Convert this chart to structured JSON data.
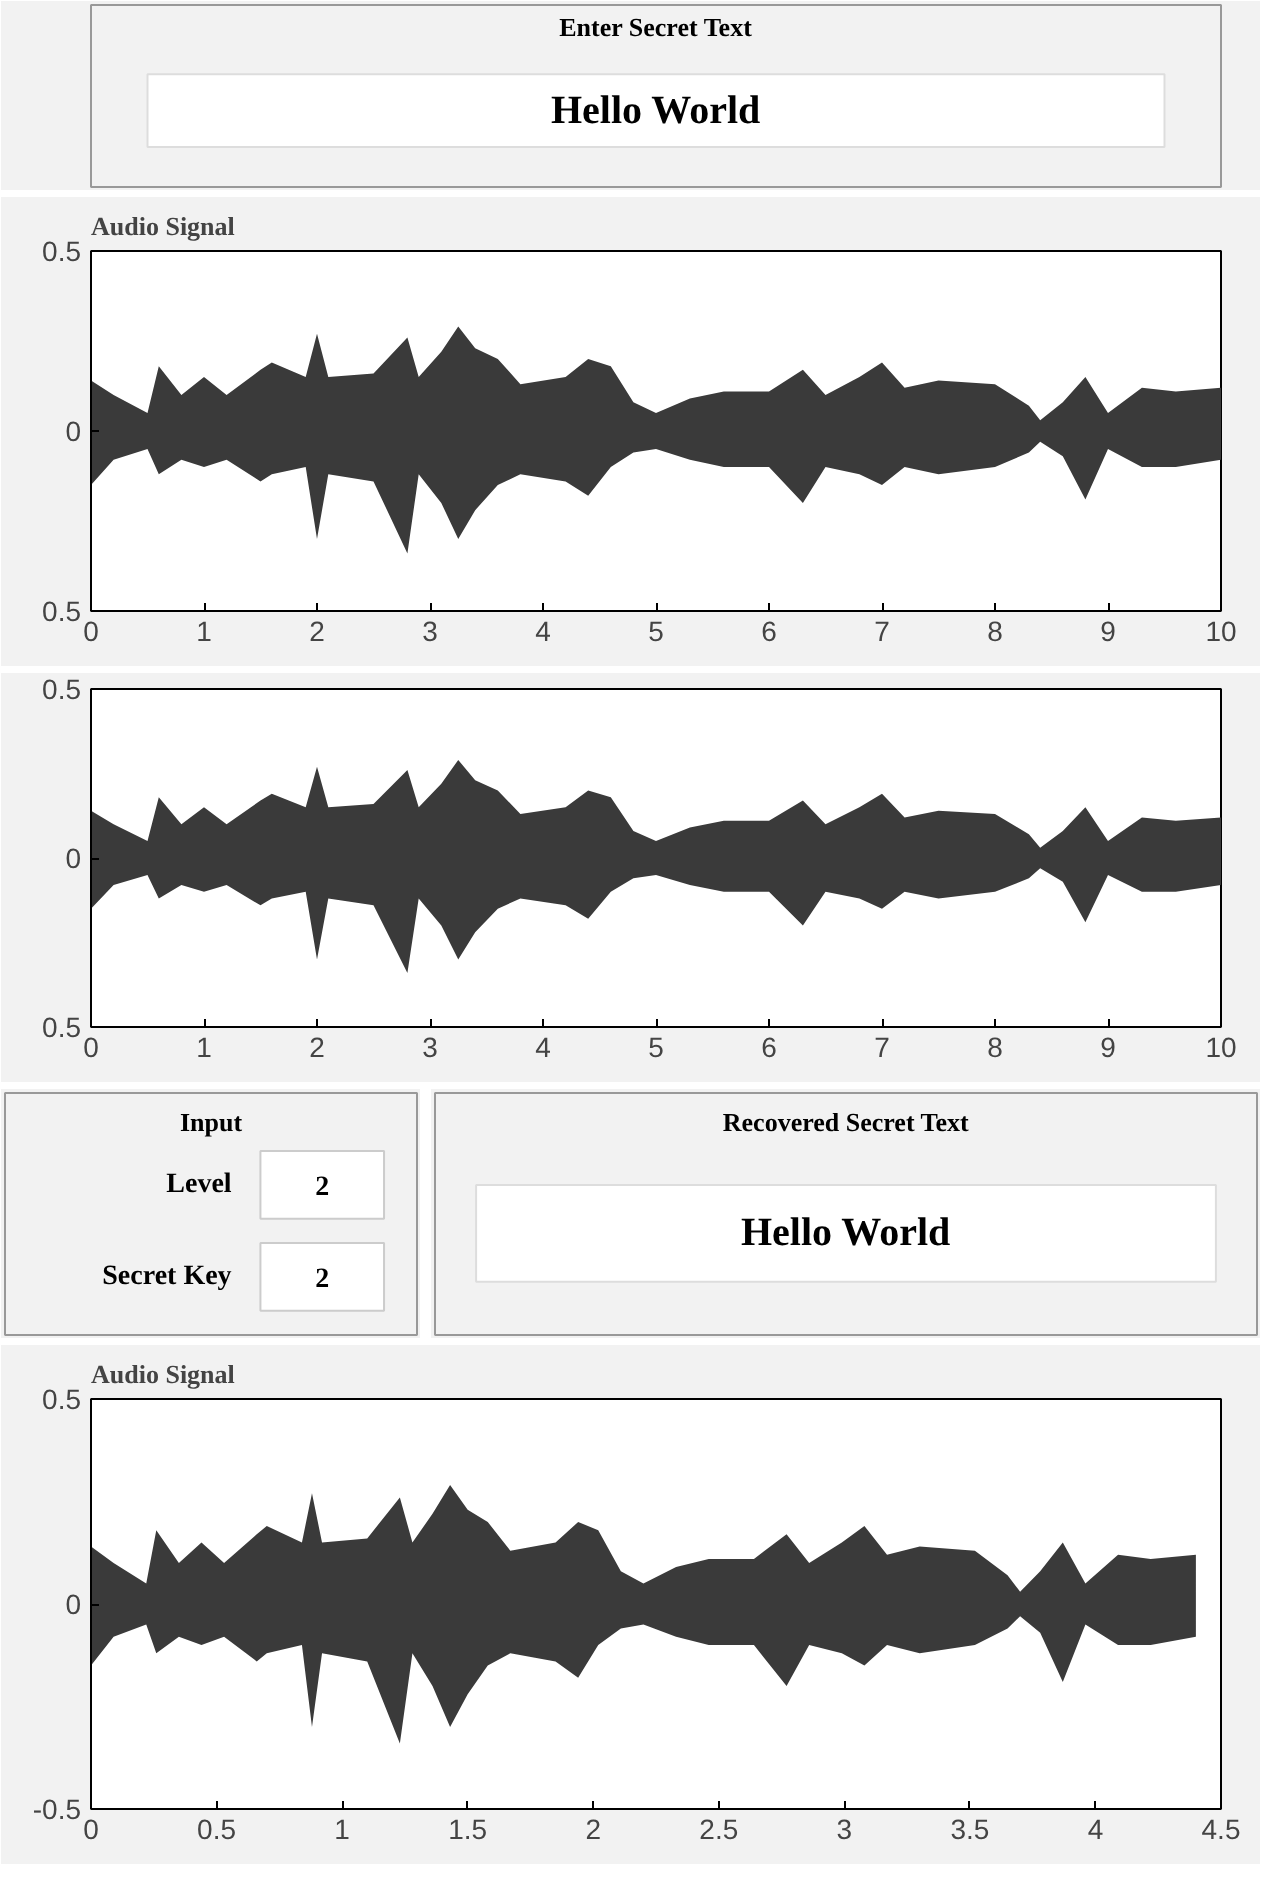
{
  "chart_data": [
    {
      "type": "other",
      "title": "Enter Secret Text",
      "annotations": [
        "Hello World"
      ]
    },
    {
      "type": "area",
      "title": "Audio Signal",
      "xlim": [
        0,
        10
      ],
      "xticks": [
        0,
        1,
        2,
        3,
        4,
        5,
        6,
        7,
        8,
        9,
        10
      ],
      "ylim": [
        -0.5,
        0.5
      ],
      "yticks": [
        {
          "value": -0.5,
          "label": "0.5"
        },
        0,
        0.5
      ],
      "x": [
        0,
        0.2,
        0.5,
        0.6,
        0.8,
        1.0,
        1.2,
        1.5,
        1.6,
        1.9,
        2.0,
        2.1,
        2.5,
        2.8,
        2.9,
        3.1,
        3.25,
        3.4,
        3.6,
        3.8,
        4.2,
        4.4,
        4.6,
        4.8,
        5.0,
        5.3,
        5.6,
        6.0,
        6.3,
        6.5,
        6.8,
        7.0,
        7.2,
        7.5,
        8.0,
        8.3,
        8.4,
        8.6,
        8.8,
        9.0,
        9.3,
        9.6,
        10
      ],
      "series": [
        {
          "color": "#3a3a3a",
          "values": [
            0.14,
            0.1,
            0.05,
            0.18,
            0.1,
            0.15,
            0.1,
            0.17,
            0.19,
            0.15,
            0.27,
            0.15,
            0.16,
            0.26,
            0.15,
            0.22,
            0.29,
            0.23,
            0.2,
            0.13,
            0.15,
            0.2,
            0.18,
            0.08,
            0.05,
            0.09,
            0.11,
            0.11,
            0.17,
            0.1,
            0.15,
            0.19,
            0.12,
            0.14,
            0.13,
            0.07,
            0.03,
            0.08,
            0.15,
            0.05,
            0.12,
            0.11,
            0.12
          ]
        },
        {
          "color": "#3a3a3a",
          "values": [
            -0.15,
            -0.08,
            -0.05,
            -0.12,
            -0.08,
            -0.1,
            -0.08,
            -0.14,
            -0.12,
            -0.1,
            -0.3,
            -0.12,
            -0.14,
            -0.34,
            -0.12,
            -0.2,
            -0.3,
            -0.22,
            -0.15,
            -0.12,
            -0.14,
            -0.18,
            -0.1,
            -0.06,
            -0.05,
            -0.08,
            -0.1,
            -0.1,
            -0.2,
            -0.1,
            -0.12,
            -0.15,
            -0.1,
            -0.12,
            -0.1,
            -0.06,
            -0.03,
            -0.07,
            -0.19,
            -0.05,
            -0.1,
            -0.1,
            -0.08
          ]
        }
      ]
    },
    {
      "type": "area",
      "xlim": [
        0,
        10
      ],
      "xticks": [
        0,
        1,
        2,
        3,
        4,
        5,
        6,
        7,
        8,
        9,
        10
      ],
      "ylim": [
        -0.5,
        0.5
      ],
      "yticks": [
        {
          "value": -0.5,
          "label": "0.5"
        },
        0,
        0.5
      ],
      "x": [
        0,
        0.2,
        0.5,
        0.6,
        0.8,
        1.0,
        1.2,
        1.5,
        1.6,
        1.9,
        2.0,
        2.1,
        2.5,
        2.8,
        2.9,
        3.1,
        3.25,
        3.4,
        3.6,
        3.8,
        4.2,
        4.4,
        4.6,
        4.8,
        5.0,
        5.3,
        5.6,
        6.0,
        6.3,
        6.5,
        6.8,
        7.0,
        7.2,
        7.5,
        8.0,
        8.3,
        8.4,
        8.6,
        8.8,
        9.0,
        9.3,
        9.6,
        10
      ],
      "series": [
        {
          "color": "#3a3a3a",
          "values": [
            0.14,
            0.1,
            0.05,
            0.18,
            0.1,
            0.15,
            0.1,
            0.17,
            0.19,
            0.15,
            0.27,
            0.15,
            0.16,
            0.26,
            0.15,
            0.22,
            0.29,
            0.23,
            0.2,
            0.13,
            0.15,
            0.2,
            0.18,
            0.08,
            0.05,
            0.09,
            0.11,
            0.11,
            0.17,
            0.1,
            0.15,
            0.19,
            0.12,
            0.14,
            0.13,
            0.07,
            0.03,
            0.08,
            0.15,
            0.05,
            0.12,
            0.11,
            0.12
          ]
        },
        {
          "color": "#3a3a3a",
          "values": [
            -0.15,
            -0.08,
            -0.05,
            -0.12,
            -0.08,
            -0.1,
            -0.08,
            -0.14,
            -0.12,
            -0.1,
            -0.3,
            -0.12,
            -0.14,
            -0.34,
            -0.12,
            -0.2,
            -0.3,
            -0.22,
            -0.15,
            -0.12,
            -0.14,
            -0.18,
            -0.1,
            -0.06,
            -0.05,
            -0.08,
            -0.1,
            -0.1,
            -0.2,
            -0.1,
            -0.12,
            -0.15,
            -0.1,
            -0.12,
            -0.1,
            -0.06,
            -0.03,
            -0.07,
            -0.19,
            -0.05,
            -0.1,
            -0.1,
            -0.08
          ]
        }
      ]
    },
    {
      "type": "other",
      "title": "Input",
      "annotations": [
        "Level",
        "2",
        "Secret Key",
        "2"
      ]
    },
    {
      "type": "other",
      "title": "Recovered Secret Text",
      "annotations": [
        "Hello World"
      ]
    },
    {
      "type": "area",
      "title": "Audio Signal",
      "xlim": [
        0,
        4.5
      ],
      "xticks": [
        0,
        0.5,
        1,
        1.5,
        2,
        2.5,
        3,
        3.5,
        4,
        4.5
      ],
      "ylim": [
        -0.5,
        0.5
      ],
      "yticks": [
        -0.5,
        0,
        0.5
      ],
      "x": [
        0,
        0.09,
        0.22,
        0.26,
        0.35,
        0.44,
        0.53,
        0.66,
        0.7,
        0.84,
        0.88,
        0.92,
        1.1,
        1.23,
        1.28,
        1.36,
        1.43,
        1.5,
        1.58,
        1.67,
        1.85,
        1.94,
        2.02,
        2.11,
        2.2,
        2.33,
        2.46,
        2.64,
        2.77,
        2.86,
        2.99,
        3.08,
        3.17,
        3.3,
        3.52,
        3.65,
        3.7,
        3.78,
        3.87,
        3.96,
        4.09,
        4.22,
        4.4
      ],
      "series": [
        {
          "color": "#3a3a3a",
          "values": [
            0.14,
            0.1,
            0.05,
            0.18,
            0.1,
            0.15,
            0.1,
            0.17,
            0.19,
            0.15,
            0.27,
            0.15,
            0.16,
            0.26,
            0.15,
            0.22,
            0.29,
            0.23,
            0.2,
            0.13,
            0.15,
            0.2,
            0.18,
            0.08,
            0.05,
            0.09,
            0.11,
            0.11,
            0.17,
            0.1,
            0.15,
            0.19,
            0.12,
            0.14,
            0.13,
            0.07,
            0.03,
            0.08,
            0.15,
            0.05,
            0.12,
            0.11,
            0.12
          ]
        },
        {
          "color": "#3a3a3a",
          "values": [
            -0.15,
            -0.08,
            -0.05,
            -0.12,
            -0.08,
            -0.1,
            -0.08,
            -0.14,
            -0.12,
            -0.1,
            -0.3,
            -0.12,
            -0.14,
            -0.34,
            -0.12,
            -0.2,
            -0.3,
            -0.22,
            -0.15,
            -0.12,
            -0.14,
            -0.18,
            -0.1,
            -0.06,
            -0.05,
            -0.08,
            -0.1,
            -0.1,
            -0.2,
            -0.1,
            -0.12,
            -0.15,
            -0.1,
            -0.12,
            -0.1,
            -0.06,
            -0.03,
            -0.07,
            -0.19,
            -0.05,
            -0.1,
            -0.1,
            -0.08
          ]
        }
      ]
    }
  ]
}
